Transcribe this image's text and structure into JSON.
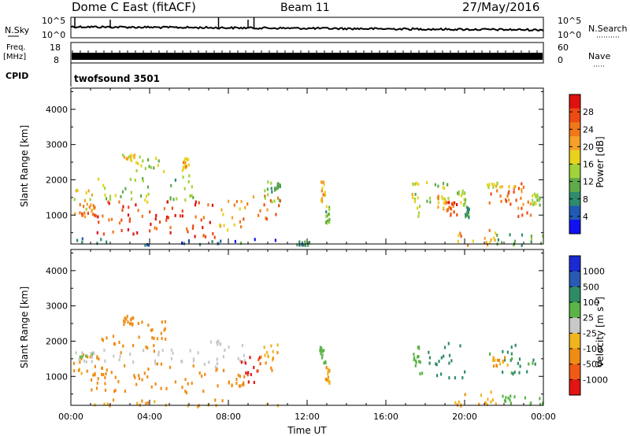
{
  "header": {
    "radar": "Dome C East (fitACF)",
    "beam": "Beam 11",
    "date": "27/May/2016"
  },
  "noise_panel": {
    "left_label": "N.Sky",
    "right_label": "N.Search",
    "tick_top": "10^5",
    "tick_bottom": "10^0"
  },
  "freq_panel": {
    "left_label_1": "Freq.",
    "left_label_2": "[MHz]",
    "right_label": "Nave",
    "left_tick_top": "18",
    "left_tick_bottom": "8",
    "right_tick_top": "60",
    "right_tick_bottom": "0"
  },
  "cpid": {
    "label": "CPID",
    "value": "twofsound 3501"
  },
  "chart_data": [
    {
      "type": "heatmap",
      "title": "",
      "quantity": "Power",
      "ylabel": "Slant Range [km]",
      "xlabel": "Time UT",
      "ylim": [
        180,
        4600
      ],
      "y_ticks": [
        1000,
        2000,
        3000,
        4000
      ],
      "x_ticks": [
        "00:00",
        "04:00",
        "08:00",
        "12:00",
        "16:00",
        "20:00",
        "00:00"
      ],
      "colorbar": {
        "label": "Power [dB]",
        "ticks": [
          "4",
          "8",
          "12",
          "16",
          "20",
          "24",
          "28"
        ],
        "colors": [
          "#1010f0",
          "#205ab4",
          "#2e8b6e",
          "#5faa4a",
          "#a0d23a",
          "#e8d21e",
          "#f5a028",
          "#f07818",
          "#ee4a14",
          "#e01010"
        ]
      },
      "regions": [
        {
          "t0": 0.1,
          "t1": 1.4,
          "r0": 950,
          "r1": 1750,
          "value": 18
        },
        {
          "t0": 0.4,
          "t1": 1.3,
          "r0": 1000,
          "r1": 1400,
          "value": 26
        },
        {
          "t0": 1.0,
          "t1": 5.0,
          "r0": 500,
          "r1": 1450,
          "value": 27
        },
        {
          "t0": 1.3,
          "t1": 4.2,
          "r0": 1350,
          "r1": 2150,
          "value": 14
        },
        {
          "t0": 2.6,
          "t1": 3.2,
          "r0": 2550,
          "r1": 2750,
          "value": 18
        },
        {
          "t0": 3.2,
          "t1": 4.8,
          "r0": 2150,
          "r1": 2700,
          "value": 14
        },
        {
          "t0": 4.8,
          "t1": 7.6,
          "r0": 400,
          "r1": 1450,
          "value": 28
        },
        {
          "t0": 5.0,
          "t1": 6.3,
          "r0": 1450,
          "r1": 2250,
          "value": 13
        },
        {
          "t0": 5.6,
          "t1": 6.0,
          "r0": 2300,
          "r1": 2650,
          "value": 20
        },
        {
          "t0": 7.2,
          "t1": 9.0,
          "r0": 600,
          "r1": 1500,
          "value": 22
        },
        {
          "t0": 8.7,
          "t1": 10.6,
          "r0": 900,
          "r1": 1600,
          "value": 24
        },
        {
          "t0": 9.8,
          "t1": 10.6,
          "r0": 1400,
          "r1": 2000,
          "value": 12
        },
        {
          "t0": 10.4,
          "t1": 10.6,
          "r0": 1800,
          "r1": 1950,
          "value": 10
        },
        {
          "t0": 11.4,
          "t1": 12.1,
          "r0": 180,
          "r1": 300,
          "value": 9
        },
        {
          "t0": 12.6,
          "t1": 12.9,
          "r0": 1300,
          "r1": 2000,
          "value": 20
        },
        {
          "t0": 12.9,
          "t1": 13.1,
          "r0": 800,
          "r1": 1300,
          "value": 13
        },
        {
          "t0": 17.3,
          "t1": 17.8,
          "r0": 1000,
          "r1": 2000,
          "value": 16
        },
        {
          "t0": 18.0,
          "t1": 19.2,
          "r0": 1400,
          "r1": 2050,
          "value": 14
        },
        {
          "t0": 18.6,
          "t1": 19.4,
          "r0": 1200,
          "r1": 1600,
          "value": 20
        },
        {
          "t0": 19.0,
          "t1": 19.6,
          "r0": 1000,
          "r1": 1400,
          "value": 27
        },
        {
          "t0": 19.6,
          "t1": 20.0,
          "r0": 1300,
          "r1": 1800,
          "value": 14
        },
        {
          "t0": 20.0,
          "t1": 20.2,
          "r0": 950,
          "r1": 1300,
          "value": 10
        },
        {
          "t0": 21.2,
          "t1": 22.6,
          "r0": 1300,
          "r1": 1800,
          "value": 26
        },
        {
          "t0": 21.0,
          "t1": 22.6,
          "r0": 1800,
          "r1": 1950,
          "value": 18
        },
        {
          "t0": 22.6,
          "t1": 23.4,
          "r0": 1000,
          "r1": 1950,
          "value": 24
        },
        {
          "t0": 23.4,
          "t1": 23.8,
          "r0": 1300,
          "r1": 1650,
          "value": 13
        },
        {
          "t0": 19.4,
          "t1": 21.6,
          "r0": 180,
          "r1": 620,
          "value": 22
        },
        {
          "t0": 21.6,
          "t1": 24.0,
          "r0": 180,
          "r1": 500,
          "value": 10
        },
        {
          "t0": 0.1,
          "t1": 10.5,
          "r0": 180,
          "r1": 380,
          "value": 6
        }
      ]
    },
    {
      "type": "heatmap",
      "title": "",
      "quantity": "Velocity",
      "ylabel": "Slant Range [km]",
      "xlabel": "Time UT",
      "ylim": [
        180,
        4600
      ],
      "y_ticks": [
        1000,
        2000,
        3000,
        4000
      ],
      "x_ticks": [
        "00:00",
        "04:00",
        "08:00",
        "12:00",
        "16:00",
        "20:00",
        "00:00"
      ],
      "colorbar": {
        "label": "Velocity [m s^-1]",
        "ticks": [
          "1000",
          "500",
          "100",
          "25",
          "-25",
          "-100",
          "-500",
          "-1000"
        ],
        "colors": [
          "#1a2ad2",
          "#285ab4",
          "#2e8c64",
          "#5ab446",
          "#c8c8c8",
          "#f0b41e",
          "#f08c14",
          "#f05a14",
          "#e21414"
        ]
      },
      "regions": [
        {
          "t0": 0.1,
          "t1": 1.4,
          "r0": 1000,
          "r1": 1700,
          "value": -150
        },
        {
          "t0": 0.2,
          "t1": 1.2,
          "r0": 1450,
          "r1": 1750,
          "value": 20
        },
        {
          "t0": 1.0,
          "t1": 7.5,
          "r0": 550,
          "r1": 1400,
          "value": -300
        },
        {
          "t0": 1.3,
          "t1": 6.5,
          "r0": 1400,
          "r1": 1800,
          "value": 0
        },
        {
          "t0": 1.5,
          "t1": 4.5,
          "r0": 1700,
          "r1": 2200,
          "value": -200
        },
        {
          "t0": 2.6,
          "t1": 3.2,
          "r0": 2500,
          "r1": 2750,
          "value": -200
        },
        {
          "t0": 3.2,
          "t1": 4.8,
          "r0": 2100,
          "r1": 2600,
          "value": -200
        },
        {
          "t0": 6.0,
          "t1": 8.8,
          "r0": 1200,
          "r1": 2050,
          "value": 0
        },
        {
          "t0": 7.6,
          "t1": 8.8,
          "r0": 700,
          "r1": 1300,
          "value": -200
        },
        {
          "t0": 8.6,
          "t1": 9.6,
          "r0": 800,
          "r1": 1600,
          "value": -1100
        },
        {
          "t0": 9.6,
          "t1": 10.5,
          "r0": 1200,
          "r1": 2000,
          "value": -100
        },
        {
          "t0": 12.6,
          "t1": 12.9,
          "r0": 1400,
          "r1": 1900,
          "value": 60
        },
        {
          "t0": 12.9,
          "t1": 13.1,
          "r0": 850,
          "r1": 1300,
          "value": -100
        },
        {
          "t0": 17.3,
          "t1": 17.8,
          "r0": 1000,
          "r1": 1900,
          "value": 60
        },
        {
          "t0": 18.0,
          "t1": 20.0,
          "r0": 1000,
          "r1": 2000,
          "value": 200
        },
        {
          "t0": 21.0,
          "t1": 23.6,
          "r0": 1100,
          "r1": 1950,
          "value": 120
        },
        {
          "t0": 21.4,
          "t1": 22.2,
          "r0": 1300,
          "r1": 1600,
          "value": -100
        },
        {
          "t0": 19.4,
          "t1": 21.6,
          "r0": 180,
          "r1": 600,
          "value": -100
        },
        {
          "t0": 21.6,
          "t1": 24.0,
          "r0": 180,
          "r1": 500,
          "value": 60
        },
        {
          "t0": 0.1,
          "t1": 10.5,
          "r0": 180,
          "r1": 380,
          "value": -100
        }
      ]
    }
  ]
}
